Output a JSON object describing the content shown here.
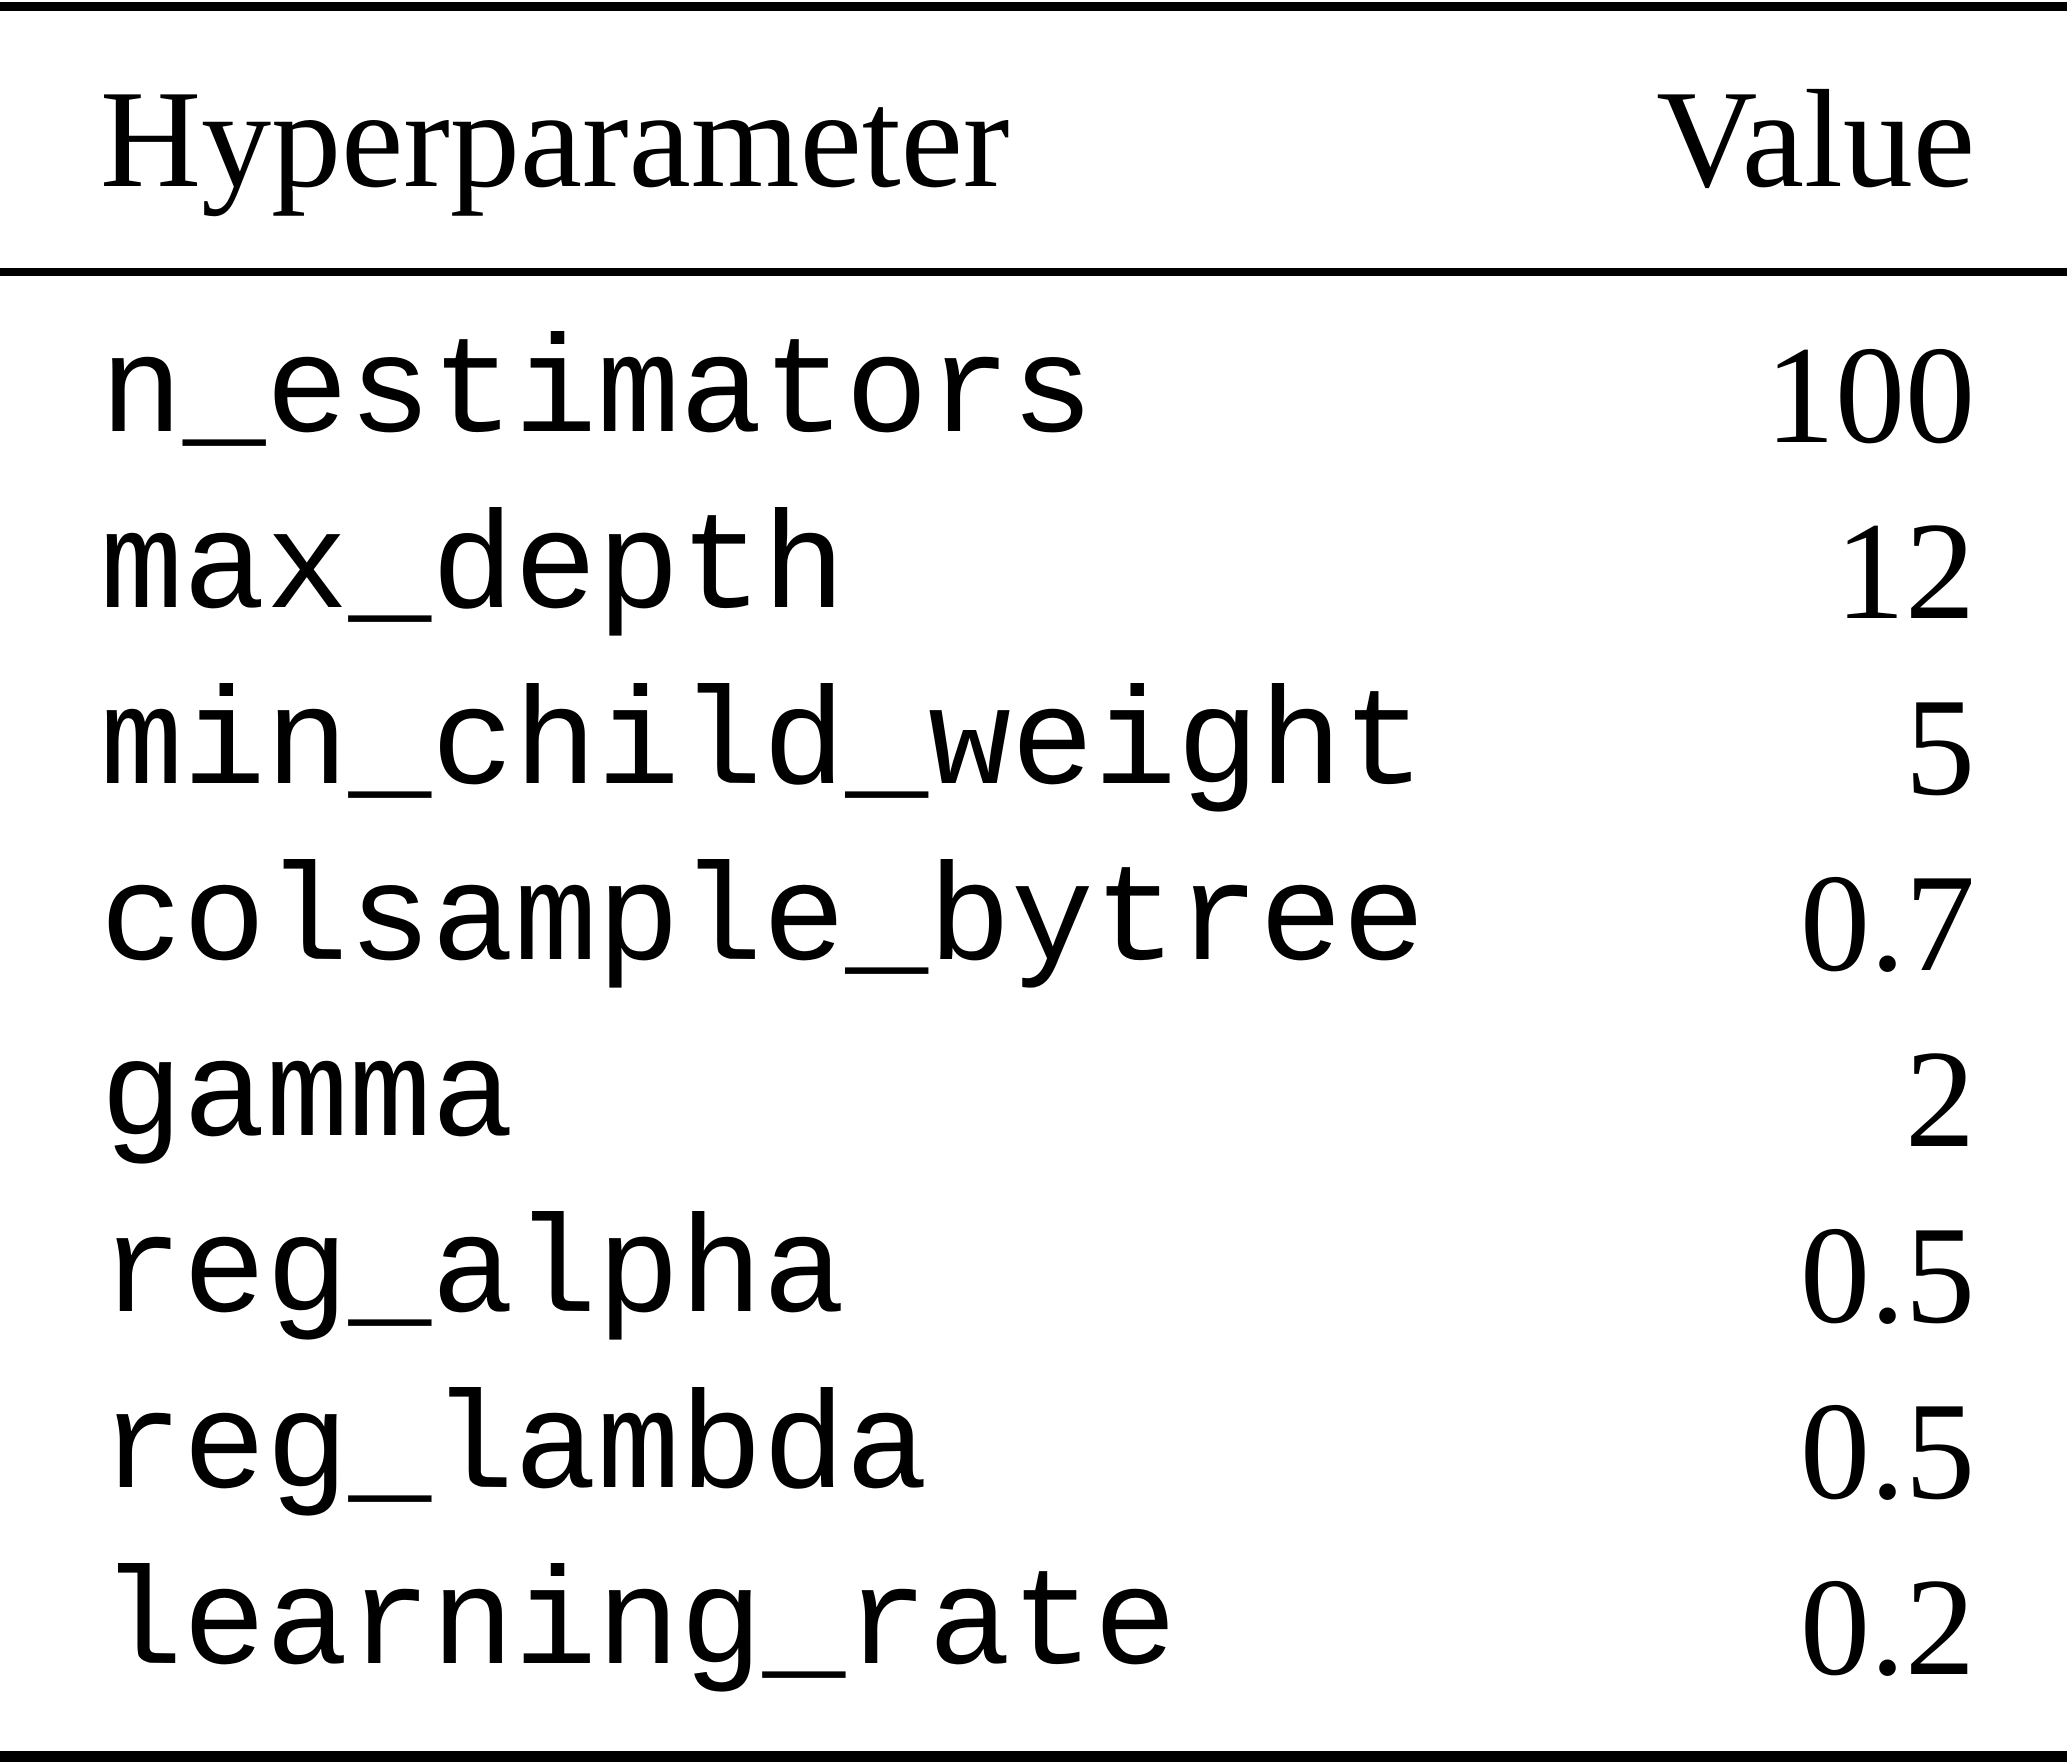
{
  "table": {
    "columns": {
      "parameter_header": "Hyperparameter",
      "value_header": "Value"
    },
    "rows": [
      {
        "name": "n_estimators",
        "value": "100"
      },
      {
        "name": "max_depth",
        "value": "12"
      },
      {
        "name": "min_child_weight",
        "value": "5"
      },
      {
        "name": "colsample_bytree",
        "value": "0.7"
      },
      {
        "name": "gamma",
        "value": "2"
      },
      {
        "name": "reg_alpha",
        "value": "0.5"
      },
      {
        "name": "reg_lambda",
        "value": "0.5"
      },
      {
        "name": "learning_rate",
        "value": "0.2"
      }
    ],
    "colors": {
      "text": "#000000",
      "background": "#ffffff",
      "rule": "#000000"
    }
  }
}
